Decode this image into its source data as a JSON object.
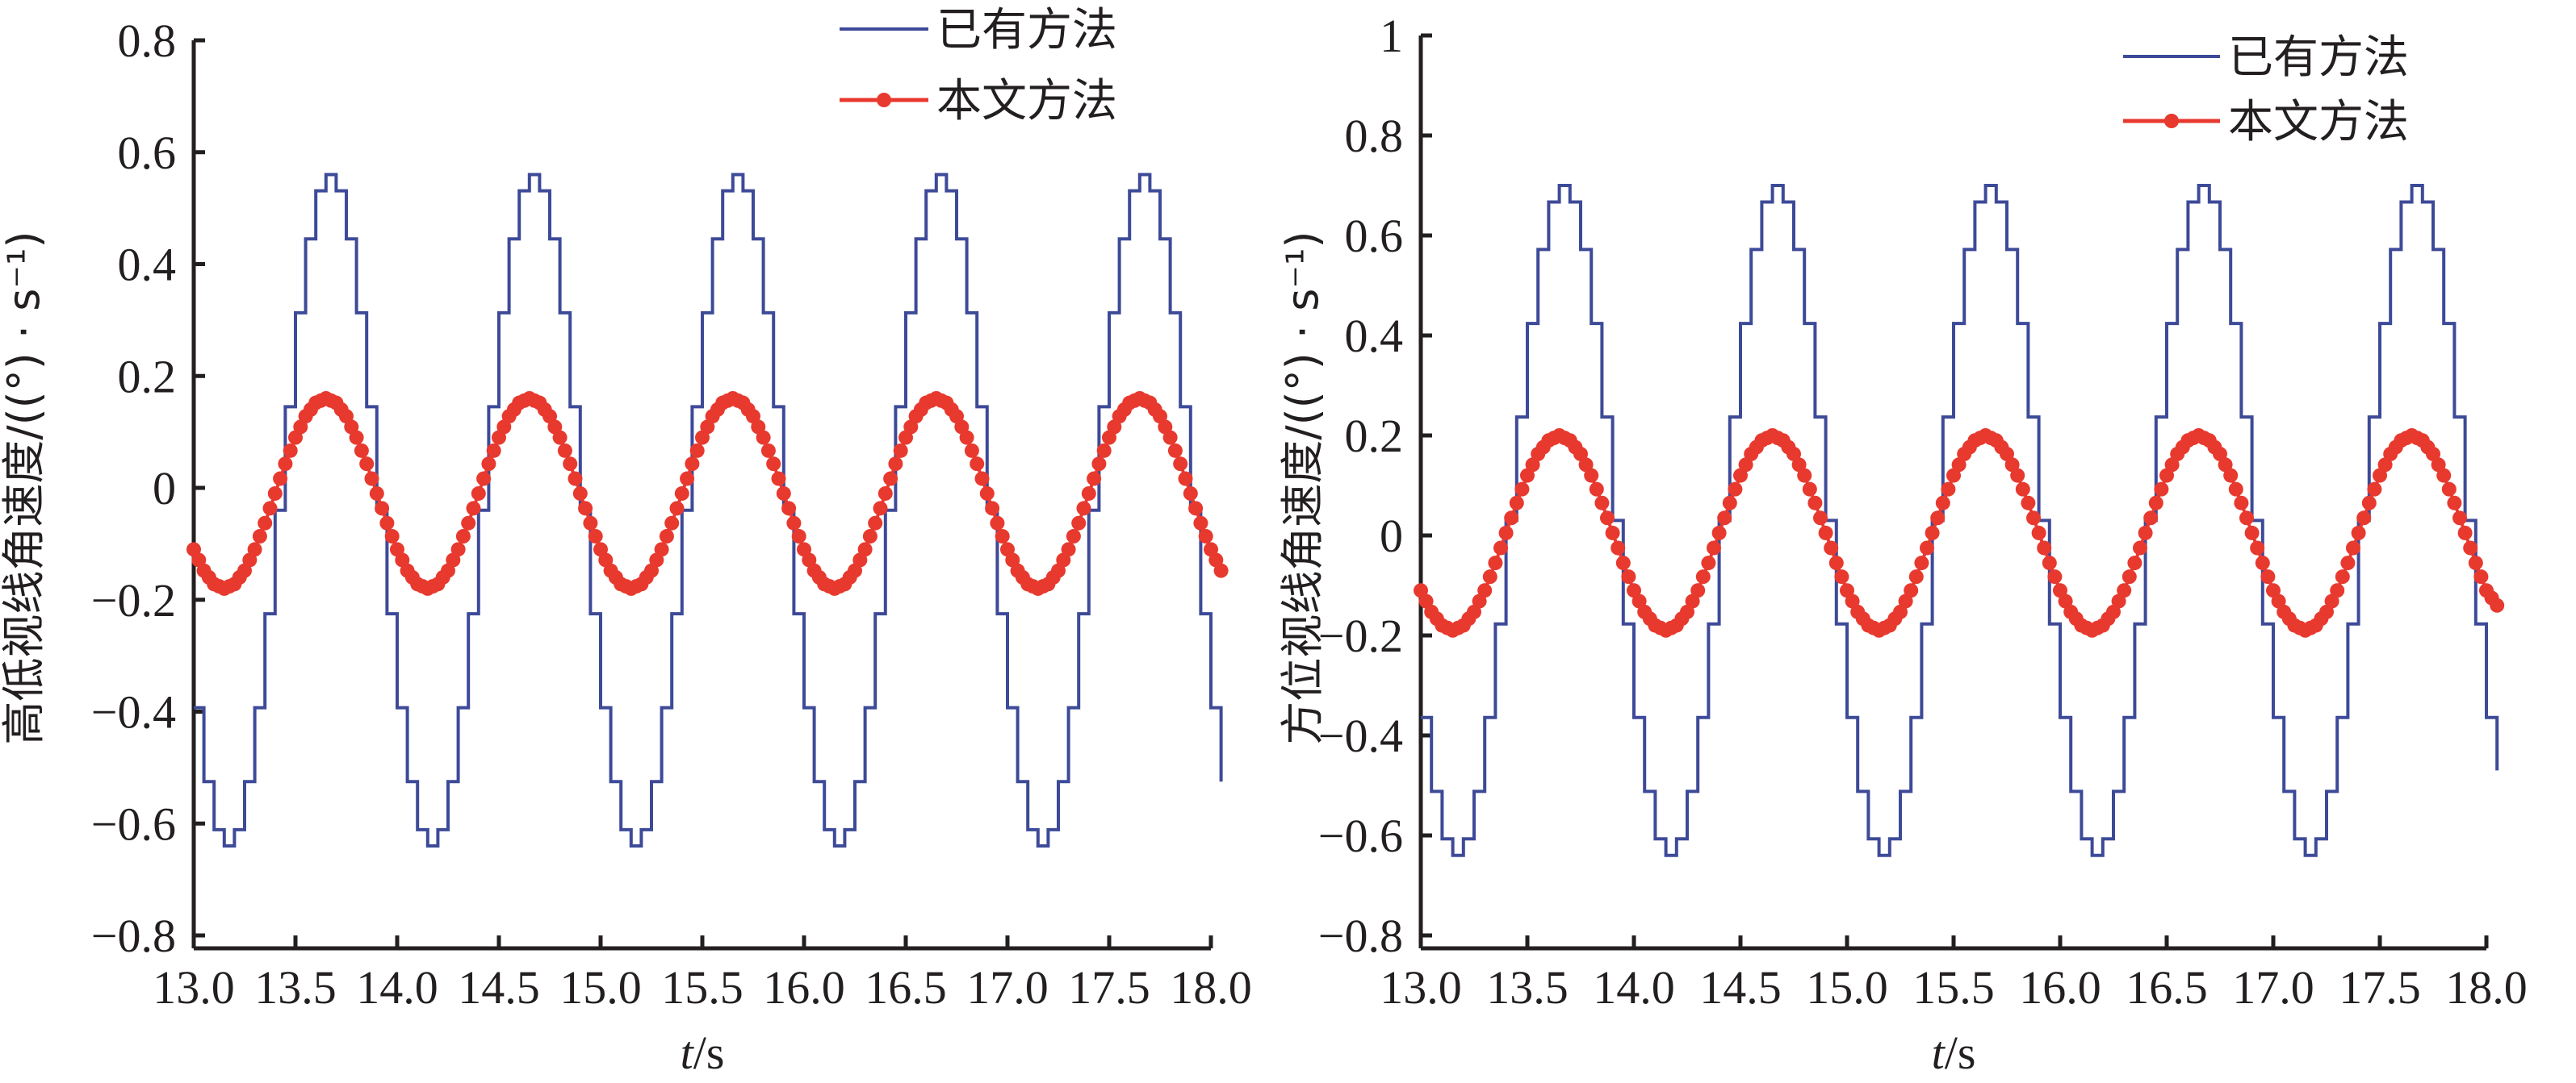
{
  "colors": {
    "existing": "#3d4a98",
    "proposed": "#e8392f",
    "axis": "#231f20"
  },
  "chart_data": [
    {
      "type": "line",
      "xlabel_italic": "t",
      "xlabel_unit": "/s",
      "ylabel": "高低视线角速度/((°) · s⁻¹)",
      "xlim": [
        13.0,
        18.0
      ],
      "ylim": [
        -0.8,
        0.8
      ],
      "xticks": [
        "13.0",
        "13.5",
        "14.0",
        "14.5",
        "15.0",
        "15.5",
        "16.0",
        "16.5",
        "17.0",
        "17.5",
        "18.0"
      ],
      "yticks": [
        "−0.8",
        "−0.6",
        "−0.4",
        "−0.2",
        "0",
        "0.2",
        "0.4",
        "0.6",
        "0.8"
      ],
      "ytick_values": [
        -0.8,
        -0.6,
        -0.4,
        -0.2,
        0,
        0.2,
        0.4,
        0.6,
        0.8
      ],
      "legend_position": "top-right",
      "grid": false,
      "x_start": 13.0,
      "x_step": 0.05,
      "series": [
        {
          "name": "已有方法",
          "style": "step",
          "values": [
            -0.393,
            -0.525,
            -0.611,
            -0.64,
            -0.611,
            -0.525,
            -0.393,
            -0.225,
            -0.04,
            0.145,
            0.313,
            0.445,
            0.531,
            0.56,
            0.531,
            0.445,
            0.313,
            0.145,
            -0.04,
            -0.225,
            -0.393,
            -0.525,
            -0.611,
            -0.64,
            -0.611,
            -0.525,
            -0.393,
            -0.225,
            -0.04,
            0.145,
            0.313,
            0.445,
            0.531,
            0.56,
            0.531,
            0.445,
            0.313,
            0.145,
            -0.04,
            -0.225,
            -0.393,
            -0.525,
            -0.611,
            -0.64,
            -0.611,
            -0.525,
            -0.393,
            -0.225,
            -0.04,
            0.145,
            0.313,
            0.445,
            0.531,
            0.56,
            0.531,
            0.445,
            0.313,
            0.145,
            -0.04,
            -0.225,
            -0.393,
            -0.525,
            -0.611,
            -0.64,
            -0.611,
            -0.525,
            -0.393,
            -0.225,
            -0.04,
            0.145,
            0.313,
            0.445,
            0.531,
            0.56,
            0.531,
            0.445,
            0.313,
            0.145,
            -0.04,
            -0.225,
            -0.393,
            -0.525,
            -0.611,
            -0.64,
            -0.611,
            -0.525,
            -0.393,
            -0.225,
            -0.04,
            0.145,
            0.313,
            0.445,
            0.531,
            0.56,
            0.531,
            0.445,
            0.313,
            0.145,
            -0.04,
            -0.225,
            -0.393,
            -0.525
          ]
        },
        {
          "name": "本文方法",
          "style": "line-dots",
          "values": [
            -0.11,
            -0.148,
            -0.172,
            -0.18,
            -0.172,
            -0.148,
            -0.11,
            -0.063,
            -0.01,
            0.043,
            0.09,
            0.128,
            0.152,
            0.16,
            0.152,
            0.128,
            0.09,
            0.043,
            -0.01,
            -0.063,
            -0.11,
            -0.148,
            -0.172,
            -0.18,
            -0.172,
            -0.148,
            -0.11,
            -0.063,
            -0.01,
            0.043,
            0.09,
            0.128,
            0.152,
            0.16,
            0.152,
            0.128,
            0.09,
            0.043,
            -0.01,
            -0.063,
            -0.11,
            -0.148,
            -0.172,
            -0.18,
            -0.172,
            -0.148,
            -0.11,
            -0.063,
            -0.01,
            0.043,
            0.09,
            0.128,
            0.152,
            0.16,
            0.152,
            0.128,
            0.09,
            0.043,
            -0.01,
            -0.063,
            -0.11,
            -0.148,
            -0.172,
            -0.18,
            -0.172,
            -0.148,
            -0.11,
            -0.063,
            -0.01,
            0.043,
            0.09,
            0.128,
            0.152,
            0.16,
            0.152,
            0.128,
            0.09,
            0.043,
            -0.01,
            -0.063,
            -0.11,
            -0.148,
            -0.172,
            -0.18,
            -0.172,
            -0.148,
            -0.11,
            -0.063,
            -0.01,
            0.043,
            0.09,
            0.128,
            0.152,
            0.16,
            0.152,
            0.128,
            0.09,
            0.043,
            -0.01,
            -0.063,
            -0.11,
            -0.148
          ]
        }
      ]
    },
    {
      "type": "line",
      "xlabel_italic": "t",
      "xlabel_unit": "/s",
      "ylabel": "方位视线角速度/((°) · s⁻¹)",
      "xlim": [
        13.0,
        18.0
      ],
      "ylim": [
        -0.8,
        1.0
      ],
      "xticks": [
        "13.0",
        "13.5",
        "14.0",
        "14.5",
        "15.0",
        "15.5",
        "16.0",
        "16.5",
        "17.0",
        "17.5",
        "18.0"
      ],
      "yticks": [
        "−0.8",
        "−0.6",
        "−0.4",
        "−0.2",
        "0",
        "0.2",
        "0.4",
        "0.6",
        "0.8",
        "1"
      ],
      "ytick_values": [
        -0.8,
        -0.6,
        -0.4,
        -0.2,
        0,
        0.2,
        0.4,
        0.6,
        0.8,
        1.0
      ],
      "legend_position": "top-right",
      "grid": false,
      "x_start": 13.0,
      "x_step": 0.05,
      "series": [
        {
          "name": "已有方法",
          "style": "step",
          "values": [
            -0.364,
            -0.512,
            -0.607,
            -0.64,
            -0.607,
            -0.512,
            -0.364,
            -0.177,
            0.03,
            0.237,
            0.424,
            0.572,
            0.667,
            0.7,
            0.667,
            0.572,
            0.424,
            0.237,
            0.03,
            -0.177,
            -0.364,
            -0.512,
            -0.607,
            -0.64,
            -0.607,
            -0.512,
            -0.364,
            -0.177,
            0.03,
            0.237,
            0.424,
            0.572,
            0.667,
            0.7,
            0.667,
            0.572,
            0.424,
            0.237,
            0.03,
            -0.177,
            -0.364,
            -0.512,
            -0.607,
            -0.64,
            -0.607,
            -0.512,
            -0.364,
            -0.177,
            0.03,
            0.237,
            0.424,
            0.572,
            0.667,
            0.7,
            0.667,
            0.572,
            0.424,
            0.237,
            0.03,
            -0.177,
            -0.364,
            -0.512,
            -0.607,
            -0.64,
            -0.607,
            -0.512,
            -0.364,
            -0.177,
            0.03,
            0.237,
            0.424,
            0.572,
            0.667,
            0.7,
            0.667,
            0.572,
            0.424,
            0.237,
            0.03,
            -0.177,
            -0.364,
            -0.512,
            -0.607,
            -0.64,
            -0.607,
            -0.512,
            -0.364,
            -0.177,
            0.03,
            0.237,
            0.424,
            0.572,
            0.667,
            0.7,
            0.667,
            0.572,
            0.424,
            0.237,
            0.03,
            -0.177,
            -0.364,
            -0.47
          ]
        },
        {
          "name": "本文方法",
          "style": "line-dots",
          "values": [
            -0.11,
            -0.153,
            -0.18,
            -0.19,
            -0.18,
            -0.153,
            -0.11,
            -0.055,
            0.005,
            0.065,
            0.12,
            0.163,
            0.19,
            0.2,
            0.19,
            0.163,
            0.12,
            0.065,
            0.005,
            -0.055,
            -0.11,
            -0.153,
            -0.18,
            -0.19,
            -0.18,
            -0.153,
            -0.11,
            -0.055,
            0.005,
            0.065,
            0.12,
            0.163,
            0.19,
            0.2,
            0.19,
            0.163,
            0.12,
            0.065,
            0.005,
            -0.055,
            -0.11,
            -0.153,
            -0.18,
            -0.19,
            -0.18,
            -0.153,
            -0.11,
            -0.055,
            0.005,
            0.065,
            0.12,
            0.163,
            0.19,
            0.2,
            0.19,
            0.163,
            0.12,
            0.065,
            0.005,
            -0.055,
            -0.11,
            -0.153,
            -0.18,
            -0.19,
            -0.18,
            -0.153,
            -0.11,
            -0.055,
            0.005,
            0.065,
            0.12,
            0.163,
            0.19,
            0.2,
            0.19,
            0.163,
            0.12,
            0.065,
            0.005,
            -0.055,
            -0.11,
            -0.153,
            -0.18,
            -0.19,
            -0.18,
            -0.153,
            -0.11,
            -0.055,
            0.005,
            0.065,
            0.12,
            0.163,
            0.19,
            0.2,
            0.19,
            0.163,
            0.12,
            0.065,
            0.005,
            -0.055,
            -0.11,
            -0.14
          ]
        }
      ]
    }
  ]
}
